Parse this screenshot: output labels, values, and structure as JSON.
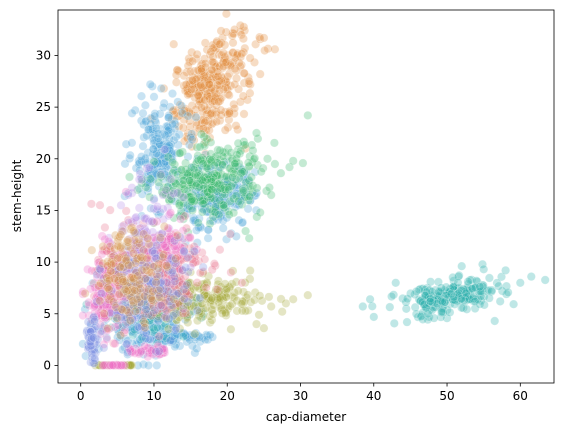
{
  "chart_data": {
    "type": "scatter",
    "title": "",
    "xlabel": "cap-diameter",
    "ylabel": "stem-height",
    "xlim": [
      -3.1,
      64.6
    ],
    "ylim": [
      -1.7,
      34.4
    ],
    "xticks": [
      0,
      10,
      20,
      30,
      40,
      50,
      60
    ],
    "yticks": [
      0,
      5,
      10,
      15,
      20,
      25,
      30
    ],
    "grid": false,
    "legend": "none",
    "marker_opacity": 0.3,
    "series": [
      {
        "color": "#e08c3c",
        "points": [
          {
            "shape": "gauss",
            "n": 260,
            "cx": 17.5,
            "cy": 26.5,
            "sx": 2.4,
            "sy": 2.4,
            "corr": 0.3
          },
          {
            "shape": "gauss",
            "n": 60,
            "cx": 19.5,
            "cy": 29.5,
            "sx": 2.5,
            "sy": 1.5,
            "corr": 0.2
          },
          {
            "shape": "list",
            "xy": [
              [
                21.8,
                32.9
              ],
              [
                21.0,
                32.5
              ],
              [
                25.0,
                31.7
              ],
              [
                19.0,
                31.1
              ],
              [
                26.5,
                30.6
              ],
              [
                14.0,
                23.0
              ],
              [
                15.5,
                22.5
              ],
              [
                16.5,
                28.5
              ],
              [
                13.2,
                28.6
              ],
              [
                23.0,
                27.5
              ],
              [
                24.5,
                28.2
              ],
              [
                17.0,
                20.5
              ],
              [
                22.5,
                21.0
              ],
              [
                12.6,
                24.6
              ]
            ]
          }
        ]
      },
      {
        "color": "#4aa3d8",
        "points": [
          {
            "shape": "gauss",
            "n": 200,
            "cx": 10.5,
            "cy": 20.5,
            "sx": 1.8,
            "sy": 2.3,
            "corr": 0.2
          },
          {
            "shape": "gauss",
            "n": 220,
            "cx": 18.5,
            "cy": 16.2,
            "sx": 2.6,
            "sy": 1.6,
            "corr": 0.2
          },
          {
            "shape": "gauss",
            "n": 200,
            "cx": 9.0,
            "cy": 4.5,
            "sx": 3.5,
            "sy": 1.8,
            "corr": 0.1
          },
          {
            "shape": "band",
            "n": 60,
            "x0": 8,
            "x1": 18,
            "y": 2.7,
            "sy": 0.25
          },
          {
            "shape": "list",
            "xy": [
              [
                9.5,
                27.2
              ],
              [
                11.0,
                26.8
              ],
              [
                10.0,
                26.0
              ],
              [
                7.0,
                24.4
              ],
              [
                8.5,
                24.4
              ],
              [
                12.0,
                24.0
              ],
              [
                11.5,
                22.3
              ]
            ]
          }
        ]
      },
      {
        "color": "#3dbb6e",
        "points": [
          {
            "shape": "gauss",
            "n": 320,
            "cx": 17.5,
            "cy": 17.8,
            "sx": 3.6,
            "sy": 1.7,
            "corr": 0.2
          },
          {
            "shape": "list",
            "xy": [
              [
                24.0,
                22.5
              ],
              [
                25.5,
                20.0
              ],
              [
                26.5,
                19.5
              ],
              [
                28.5,
                19.2
              ],
              [
                29.0,
                19.8
              ],
              [
                31.0,
                24.2
              ],
              [
                21.5,
                21.5
              ],
              [
                23.5,
                20.8
              ],
              [
                20.5,
                20.6
              ],
              [
                22.5,
                13.0
              ],
              [
                23.0,
                12.3
              ],
              [
                24.5,
                14.8
              ],
              [
                26.0,
                16.5
              ],
              [
                14.0,
                14.5
              ],
              [
                13.5,
                15.5
              ]
            ]
          }
        ]
      },
      {
        "color": "#2ab0ad",
        "points": [
          {
            "shape": "gauss",
            "n": 220,
            "cx": 50.5,
            "cy": 6.5,
            "sx": 3.6,
            "sy": 0.95,
            "corr": 0.5
          },
          {
            "shape": "gauss",
            "n": 80,
            "cx": 10,
            "cy": 5.5,
            "sx": 3,
            "sy": 1.5,
            "corr": 0.0
          },
          {
            "shape": "list",
            "xy": [
              [
                61.5,
                8.6
              ],
              [
                38.5,
                5.7
              ],
              [
                40.0,
                4.7
              ],
              [
                39.5,
                6.4
              ],
              [
                58.0,
                9.2
              ],
              [
                60.0,
                8.0
              ],
              [
                56.5,
                4.3
              ],
              [
                55.0,
                9.3
              ],
              [
                52.0,
                9.6
              ],
              [
                43.0,
                8.0
              ]
            ]
          }
        ]
      },
      {
        "color": "#a5a83a",
        "points": [
          {
            "shape": "gauss",
            "n": 200,
            "cx": 17,
            "cy": 6.3,
            "sx": 4.2,
            "sy": 1.1,
            "corr": 0.15
          },
          {
            "shape": "band",
            "n": 40,
            "x0": 2.0,
            "x1": 7.0,
            "y": 0.0,
            "sy": 0.03
          },
          {
            "shape": "list",
            "xy": [
              [
                27.5,
                5.2
              ],
              [
                28.0,
                6.0
              ],
              [
                29.0,
                6.4
              ],
              [
                31.0,
                6.8
              ],
              [
                26.0,
                5.7
              ],
              [
                25.0,
                3.6
              ],
              [
                24.0,
                4.0
              ],
              [
                20.5,
                3.5
              ]
            ]
          }
        ]
      },
      {
        "color": "#e8708a",
        "points": [
          {
            "shape": "gauss",
            "n": 260,
            "cx": 10.5,
            "cy": 9.0,
            "sx": 3.0,
            "sy": 2.2,
            "corr": 0.15
          },
          {
            "shape": "gauss",
            "n": 80,
            "cx": 5.0,
            "cy": 9.0,
            "sx": 1.5,
            "sy": 2.5,
            "corr": 0.2
          },
          {
            "shape": "list",
            "xy": [
              [
                20.5,
                9.0
              ],
              [
                22.0,
                8.0
              ],
              [
                19.0,
                11.2
              ]
            ]
          }
        ]
      },
      {
        "color": "#b58ee8",
        "points": [
          {
            "shape": "gauss",
            "n": 120,
            "cx": 8.5,
            "cy": 12.0,
            "sx": 2.0,
            "sy": 3.0,
            "corr": 0.2
          },
          {
            "shape": "list",
            "xy": [
              [
                5.5,
                15.5
              ],
              [
                6.5,
                16.5
              ],
              [
                7.0,
                17.2
              ],
              [
                8.0,
                18.0
              ],
              [
                14.0,
                5.5
              ],
              [
                15.0,
                9.5
              ]
            ]
          }
        ]
      },
      {
        "color": "#f06fc8",
        "points": [
          {
            "shape": "gauss",
            "n": 140,
            "cx": 3.5,
            "cy": 7.0,
            "sx": 1.4,
            "sy": 2.2,
            "corr": 0.1
          },
          {
            "shape": "band",
            "n": 45,
            "x0": 6.5,
            "x1": 11.5,
            "y": 1.4,
            "sy": 0.2
          },
          {
            "shape": "band",
            "n": 25,
            "x0": 3.0,
            "x1": 6.0,
            "y": 0.0,
            "sy": 0.03
          },
          {
            "shape": "gauss",
            "n": 60,
            "cx": 12.0,
            "cy": 11.5,
            "sx": 1.5,
            "sy": 1.2,
            "corr": 0.0
          }
        ]
      },
      {
        "color": "#7a8fe0",
        "points": [
          {
            "shape": "gauss",
            "n": 160,
            "cx": 9,
            "cy": 7,
            "sx": 3.0,
            "sy": 2.5,
            "corr": 0.2
          },
          {
            "shape": "gauss",
            "n": 60,
            "cx": 1.5,
            "cy": 2.5,
            "sx": 0.4,
            "sy": 1.0,
            "corr": 0.0
          }
        ]
      },
      {
        "color": "#d4954a",
        "points": [
          {
            "shape": "gauss",
            "n": 160,
            "cx": 7,
            "cy": 9,
            "sx": 2.5,
            "sy": 2.2,
            "corr": 0.1
          }
        ]
      }
    ]
  }
}
